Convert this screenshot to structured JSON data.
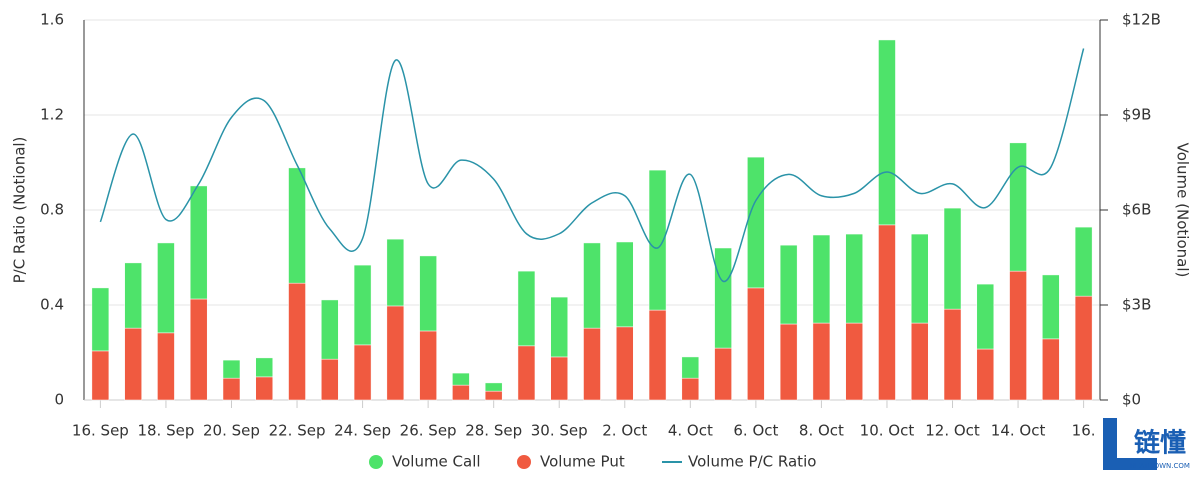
{
  "chart_data": {
    "type": "stacked-bar-line",
    "categories": [
      "16. Sep",
      null,
      "18. Sep",
      null,
      "20. Sep",
      null,
      "22. Sep",
      null,
      "24. Sep",
      null,
      "26. Sep",
      null,
      "28. Sep",
      null,
      "30. Sep",
      null,
      "2. Oct",
      null,
      "4. Oct",
      null,
      "6. Oct",
      null,
      "8. Oct",
      null,
      "10. Oct",
      null,
      "12. Oct",
      null,
      "14. Oct",
      null,
      "16."
    ],
    "series": [
      {
        "name": "Volume Call",
        "color": "#4ee36a",
        "axis": "y2",
        "kind": "bar",
        "values": [
          1.99,
          2.06,
          2.84,
          3.57,
          0.57,
          0.6,
          3.64,
          1.87,
          2.52,
          2.11,
          2.37,
          0.38,
          0.26,
          2.36,
          1.89,
          2.69,
          2.68,
          4.42,
          0.67,
          3.16,
          4.13,
          2.49,
          2.78,
          2.81,
          5.84,
          2.81,
          3.19,
          2.05,
          4.05,
          2.02,
          2.18
        ]
      },
      {
        "name": "Volume Put",
        "color": "#f05a40",
        "axis": "y2",
        "kind": "bar",
        "values": [
          1.55,
          2.27,
          2.12,
          3.19,
          0.69,
          0.73,
          3.69,
          1.29,
          1.74,
          2.97,
          2.18,
          0.47,
          0.28,
          1.71,
          1.36,
          2.27,
          2.31,
          2.84,
          0.69,
          1.64,
          3.54,
          2.4,
          2.43,
          2.43,
          5.53,
          2.43,
          2.87,
          1.61,
          4.07,
          1.93,
          3.28
        ]
      },
      {
        "name": "Volume P/C Ratio",
        "color": "#2a93a8",
        "axis": "y",
        "kind": "line",
        "values": [
          0.75,
          1.12,
          0.76,
          0.91,
          1.19,
          1.26,
          0.99,
          0.72,
          0.68,
          1.43,
          0.91,
          1.01,
          0.93,
          0.7,
          0.7,
          0.83,
          0.86,
          0.64,
          0.95,
          0.5,
          0.84,
          0.95,
          0.86,
          0.87,
          0.96,
          0.87,
          0.91,
          0.81,
          0.98,
          0.98,
          1.48
        ]
      }
    ],
    "ylabel": "P/C Ratio (Notional)",
    "y2label": "Volume (Notional)",
    "ylim": [
      0,
      1.6
    ],
    "yticks": [
      0,
      0.4,
      0.8,
      1.2,
      1.6
    ],
    "y2lim": [
      0,
      12
    ],
    "y2ticks": [
      {
        "value": 0,
        "label": "$0"
      },
      {
        "value": 3,
        "label": "$3B"
      },
      {
        "value": 6,
        "label": "$6B"
      },
      {
        "value": 9,
        "label": "$9B"
      },
      {
        "value": 12,
        "label": "$12B"
      }
    ],
    "grid": true,
    "legend": "bottom",
    "watermark": {
      "text": "链懂",
      "subtext": "NEATDOWN.COM"
    }
  }
}
